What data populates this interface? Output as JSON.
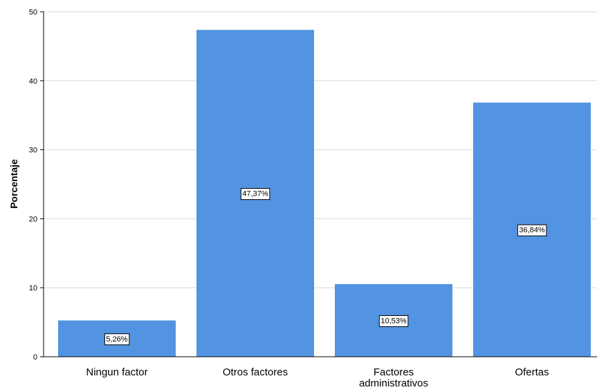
{
  "chart_data": {
    "type": "bar",
    "title": "",
    "xlabel": "",
    "ylabel": "Porcentaje",
    "categories": [
      "Ningun factor",
      "Otros factores",
      "Factores administrativos",
      "Ofertas"
    ],
    "category_lines": [
      [
        "Ningun factor"
      ],
      [
        "Otros factores"
      ],
      [
        "Factores",
        "administrativos"
      ],
      [
        "Ofertas"
      ]
    ],
    "values": [
      5.26,
      47.37,
      10.53,
      36.84
    ],
    "data_labels": [
      "5,26%",
      "47,37%",
      "10,53%",
      "36,84%"
    ],
    "yticks": [
      0,
      10,
      20,
      30,
      40,
      50
    ],
    "ytick_labels": [
      "0",
      "10",
      "20",
      "30",
      "40",
      "50"
    ],
    "ylim": [
      0,
      50
    ],
    "grid": true,
    "colors": {
      "bar": "#5294E2",
      "grid": "#d9d9d9",
      "axis": "#000000"
    }
  }
}
